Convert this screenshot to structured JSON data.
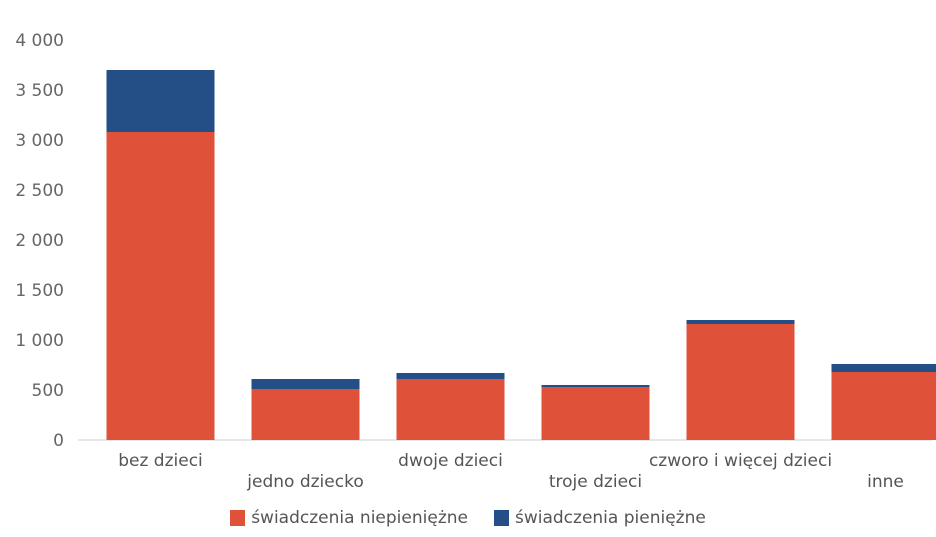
{
  "chart_data": {
    "type": "bar",
    "stacked": true,
    "categories": [
      "bez dzieci",
      "jedno dziecko",
      "dwoje dzieci",
      "troje dzieci",
      "czworo i więcej dzieci",
      "inne"
    ],
    "series": [
      {
        "name": "świadczenia niepieniężne",
        "color": "#e0513a",
        "values": [
          3080,
          510,
          610,
          530,
          1160,
          680
        ]
      },
      {
        "name": "świadczenia pieniężne",
        "color": "#234f86",
        "values": [
          620,
          100,
          60,
          20,
          40,
          80
        ]
      }
    ],
    "ylim": [
      0,
      4000
    ],
    "yticks": [
      "0",
      "500",
      "1 000",
      "1 500",
      "2 000",
      "2 500",
      "3 000",
      "3 500",
      "4 000"
    ],
    "ytick_values": [
      0,
      500,
      1000,
      1500,
      2000,
      2500,
      3000,
      3500,
      4000
    ],
    "grid": false,
    "legend_position": "bottom",
    "title": "",
    "xlabel": "",
    "ylabel": ""
  }
}
